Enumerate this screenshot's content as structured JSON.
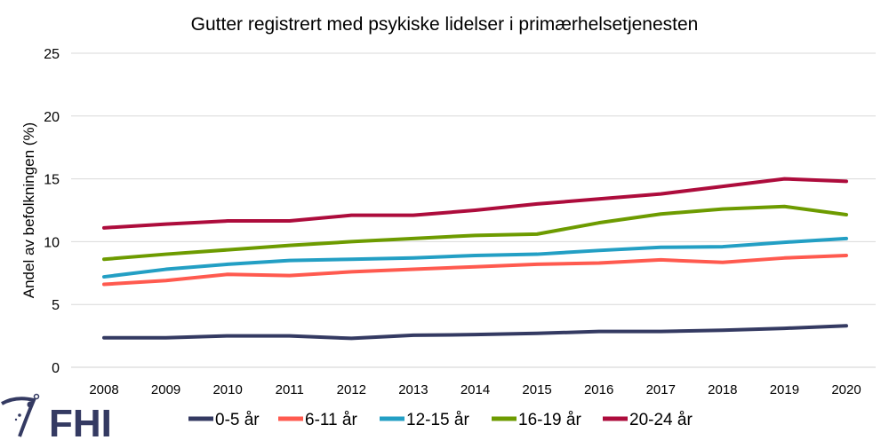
{
  "logo": {
    "text": "FHI"
  },
  "chart_data": {
    "type": "line",
    "title": "Gutter registrert med psykiske lidelser i primærhelsetjenesten",
    "xlabel": "",
    "ylabel": "Andel av befolkningen (%)",
    "ylim": [
      0,
      25
    ],
    "yticks": [
      0,
      5,
      10,
      15,
      20,
      25
    ],
    "grid": true,
    "legend_position": "bottom",
    "x": [
      "2008",
      "2009",
      "2010",
      "2011",
      "2012",
      "2013",
      "2014",
      "2015",
      "2016",
      "2017",
      "2018",
      "2019",
      "2020"
    ],
    "series": [
      {
        "name": "0-5 år",
        "color": "#343a62",
        "values": [
          2.35,
          2.35,
          2.5,
          2.5,
          2.3,
          2.55,
          2.6,
          2.7,
          2.85,
          2.85,
          2.95,
          3.1,
          3.3
        ]
      },
      {
        "name": "6-11 år",
        "color": "#ff5a4f",
        "values": [
          6.6,
          6.9,
          7.4,
          7.3,
          7.6,
          7.8,
          8.0,
          8.2,
          8.3,
          8.55,
          8.35,
          8.7,
          8.9
        ]
      },
      {
        "name": "12-15 år",
        "color": "#239fc4",
        "values": [
          7.2,
          7.8,
          8.2,
          8.5,
          8.6,
          8.7,
          8.9,
          9.0,
          9.3,
          9.55,
          9.6,
          9.95,
          10.25
        ]
      },
      {
        "name": "16-19 år",
        "color": "#6d9b00",
        "values": [
          8.6,
          9.0,
          9.35,
          9.7,
          10.0,
          10.25,
          10.5,
          10.6,
          11.5,
          12.2,
          12.6,
          12.8,
          12.15
        ]
      },
      {
        "name": "20-24 år",
        "color": "#ad0c3c",
        "values": [
          11.1,
          11.4,
          11.65,
          11.65,
          12.1,
          12.1,
          12.5,
          13.0,
          13.4,
          13.8,
          14.4,
          15.0,
          14.8
        ]
      }
    ]
  }
}
